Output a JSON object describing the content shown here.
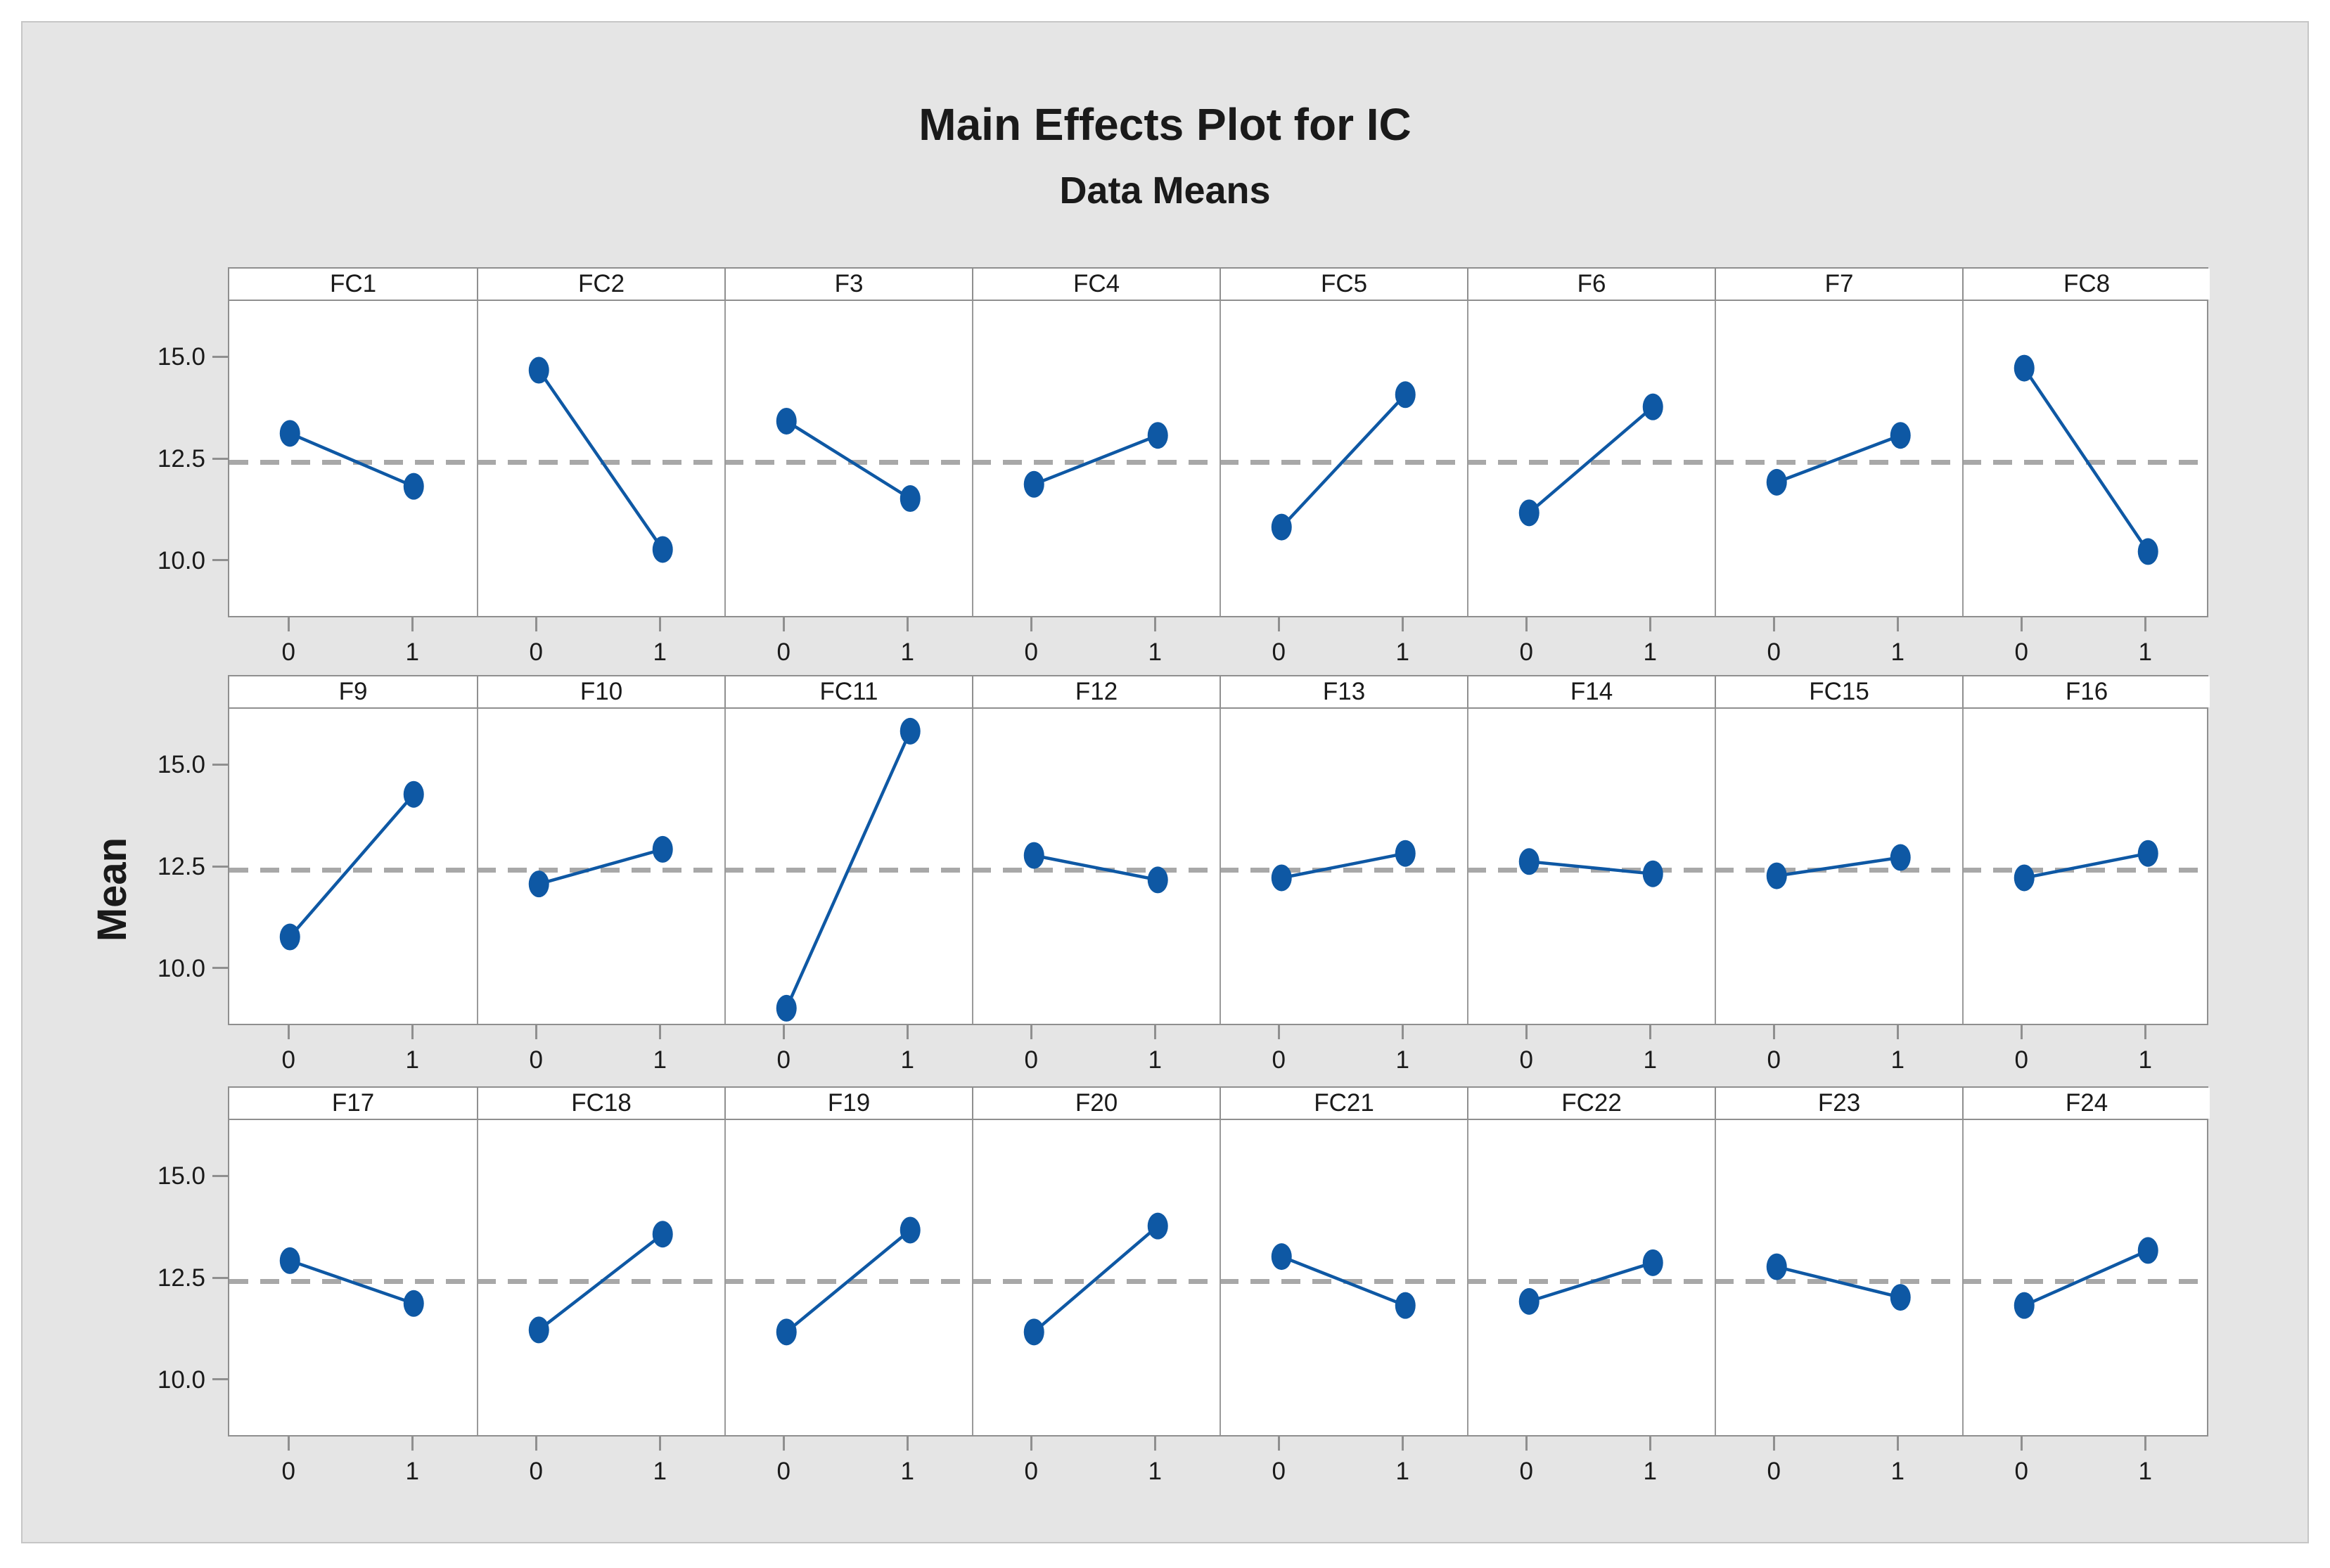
{
  "title": "Main Effects Plot for IC",
  "subtitle": "Data Means",
  "y_axis_label": "Mean",
  "colors": {
    "point": "#0e58a4",
    "line": "#0e58a4",
    "mean_dash": "#a8a8a8",
    "panel_border": "#8f8f8f",
    "figure_bg": "#e5e5e5",
    "plot_bg": "#ffffff",
    "text": "#1a1a1a"
  },
  "chart_data": {
    "type": "line",
    "title": "Main Effects Plot for IC",
    "subtitle": "Data Means",
    "ylabel": "Mean",
    "x_levels": [
      "0",
      "1"
    ],
    "y_ticks": [
      15.0,
      12.5,
      10.0
    ],
    "y_tick_labels": [
      "15.0",
      "12.5",
      "10.0"
    ],
    "ylim": [
      8.6,
      16.4
    ],
    "grid": false,
    "overall_mean": 12.45,
    "mean_line_style": "dashed",
    "layout": "3 rows x 8 panels",
    "rows": [
      [
        {
          "factor": "FC1",
          "means": [
            13.15,
            11.85
          ]
        },
        {
          "factor": "FC2",
          "means": [
            14.7,
            10.3
          ]
        },
        {
          "factor": "F3",
          "means": [
            13.45,
            11.55
          ]
        },
        {
          "factor": "FC4",
          "means": [
            11.9,
            13.1
          ]
        },
        {
          "factor": "FC5",
          "means": [
            10.85,
            14.1
          ]
        },
        {
          "factor": "F6",
          "means": [
            11.2,
            13.8
          ]
        },
        {
          "factor": "F7",
          "means": [
            11.95,
            13.1
          ]
        },
        {
          "factor": "FC8",
          "means": [
            14.75,
            10.25
          ]
        }
      ],
      [
        {
          "factor": "F9",
          "means": [
            10.8,
            14.3
          ]
        },
        {
          "factor": "F10",
          "means": [
            12.1,
            12.95
          ]
        },
        {
          "factor": "FC11",
          "means": [
            9.05,
            15.85
          ]
        },
        {
          "factor": "F12",
          "means": [
            12.8,
            12.2
          ]
        },
        {
          "factor": "F13",
          "means": [
            12.25,
            12.85
          ]
        },
        {
          "factor": "F14",
          "means": [
            12.65,
            12.35
          ]
        },
        {
          "factor": "FC15",
          "means": [
            12.3,
            12.75
          ]
        },
        {
          "factor": "F16",
          "means": [
            12.25,
            12.85
          ]
        }
      ],
      [
        {
          "factor": "F17",
          "means": [
            12.95,
            11.9
          ]
        },
        {
          "factor": "FC18",
          "means": [
            11.25,
            13.6
          ]
        },
        {
          "factor": "F19",
          "means": [
            11.2,
            13.7
          ]
        },
        {
          "factor": "F20",
          "means": [
            11.2,
            13.8
          ]
        },
        {
          "factor": "FC21",
          "means": [
            13.05,
            11.85
          ]
        },
        {
          "factor": "FC22",
          "means": [
            11.95,
            12.9
          ]
        },
        {
          "factor": "F23",
          "means": [
            12.8,
            12.05
          ]
        },
        {
          "factor": "F24",
          "means": [
            11.85,
            13.2
          ]
        }
      ]
    ]
  }
}
